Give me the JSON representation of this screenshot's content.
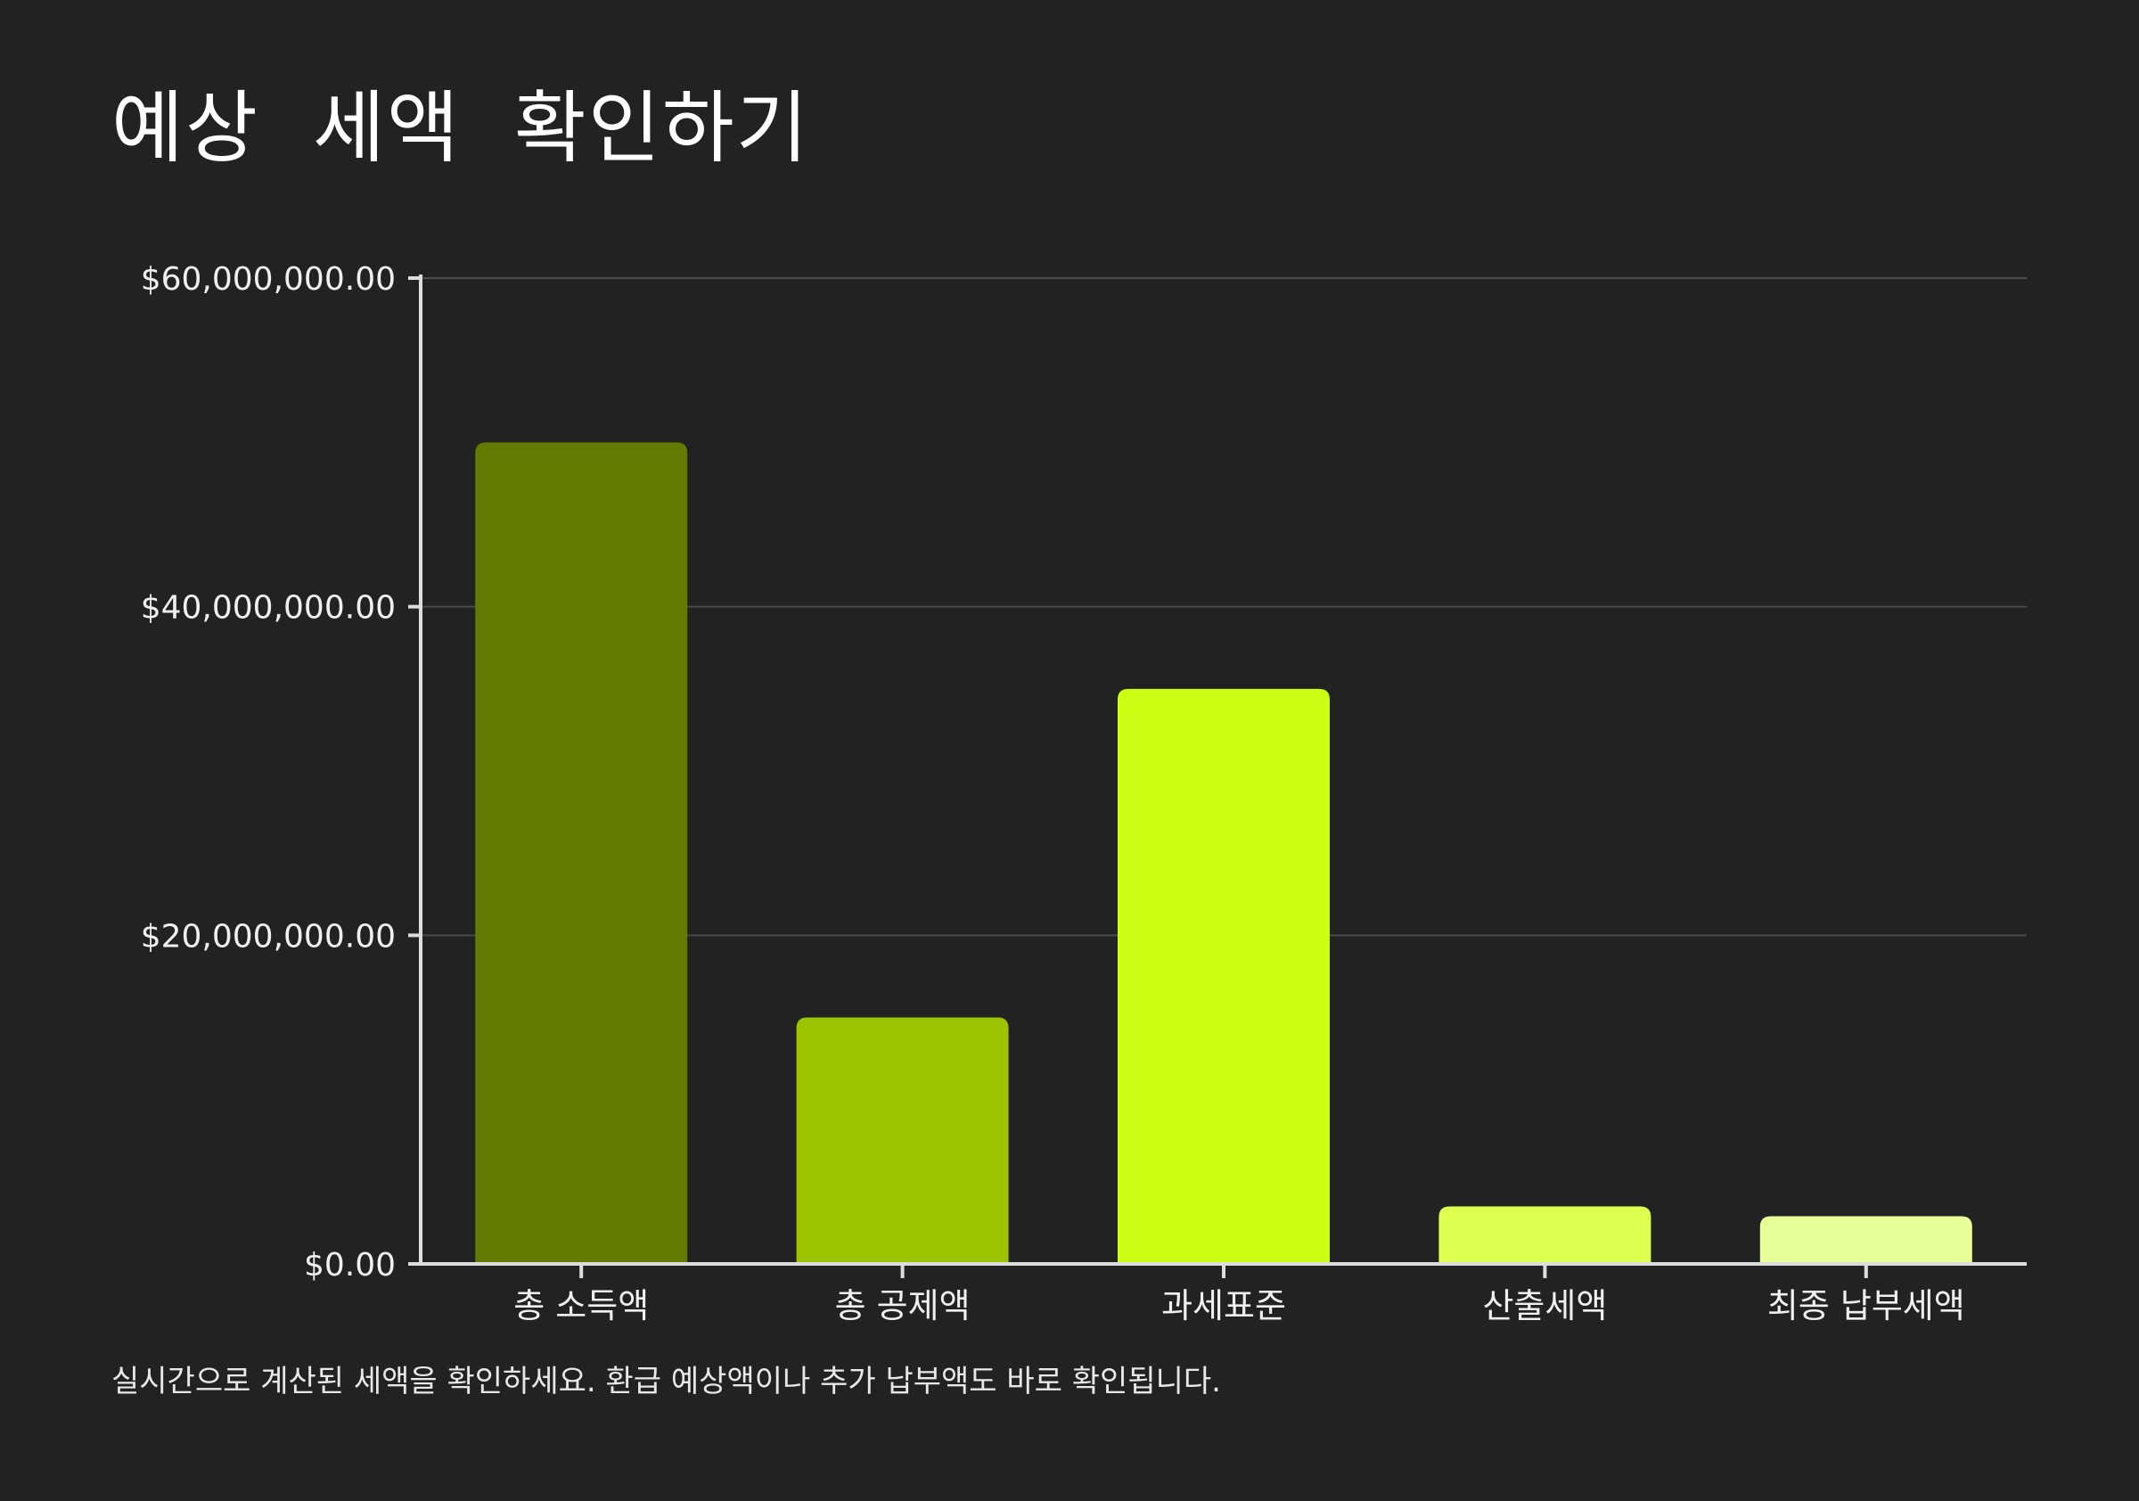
{
  "title": "예상 세액 확인하기",
  "caption": "실시간으로 계산된 세액을 확인하세요. 환급 예상액이나 추가 납부액도 바로 확인됩니다.",
  "colors": {
    "background": "#222222",
    "axis": "#dddddd",
    "grid": "#4a4a4a"
  },
  "chart_data": {
    "type": "bar",
    "title": "예상 세액 확인하기",
    "xlabel": "",
    "ylabel": "",
    "categories": [
      "총 소득액",
      "총 공제액",
      "과세표준",
      "산출세액",
      "최종 납부세액"
    ],
    "values": [
      50000000,
      15000000,
      35000000,
      3500000,
      2900000
    ],
    "bar_colors": [
      "#627a00",
      "#9dc400",
      "#ccff14",
      "#dcff50",
      "#e8ff98"
    ],
    "ylim": [
      0,
      60000000
    ],
    "yticks": [
      0,
      20000000,
      40000000,
      60000000
    ],
    "ytick_labels": [
      "$0.00",
      "$20,000,000.00",
      "$40,000,000.00",
      "$60,000,000.00"
    ],
    "grid": true,
    "legend": "none"
  }
}
